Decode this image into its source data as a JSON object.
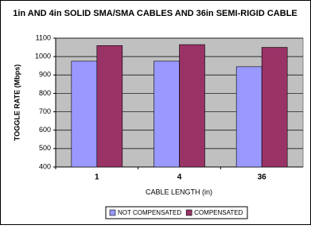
{
  "chart_data": {
    "type": "bar",
    "title": "1in AND 4in SOLID SMA/SMA CABLES AND 36in SEMI-RIGID CABLE",
    "x_label": "CABLE LENGTH (in)",
    "y_label": "TOGGLE RATE (Mbps)",
    "categories": [
      "1",
      "4",
      "36"
    ],
    "series": [
      {
        "name": "NOT COMPENSATED",
        "color": "#9999ff",
        "values": [
          975,
          975,
          945
        ]
      },
      {
        "name": "COMPENSATED",
        "color": "#993366",
        "values": [
          1060,
          1065,
          1050
        ]
      }
    ],
    "ylim": [
      400,
      1100
    ],
    "yticks": [
      400,
      500,
      600,
      700,
      800,
      900,
      1000,
      1100
    ],
    "grid": true,
    "legend": "bottom"
  }
}
